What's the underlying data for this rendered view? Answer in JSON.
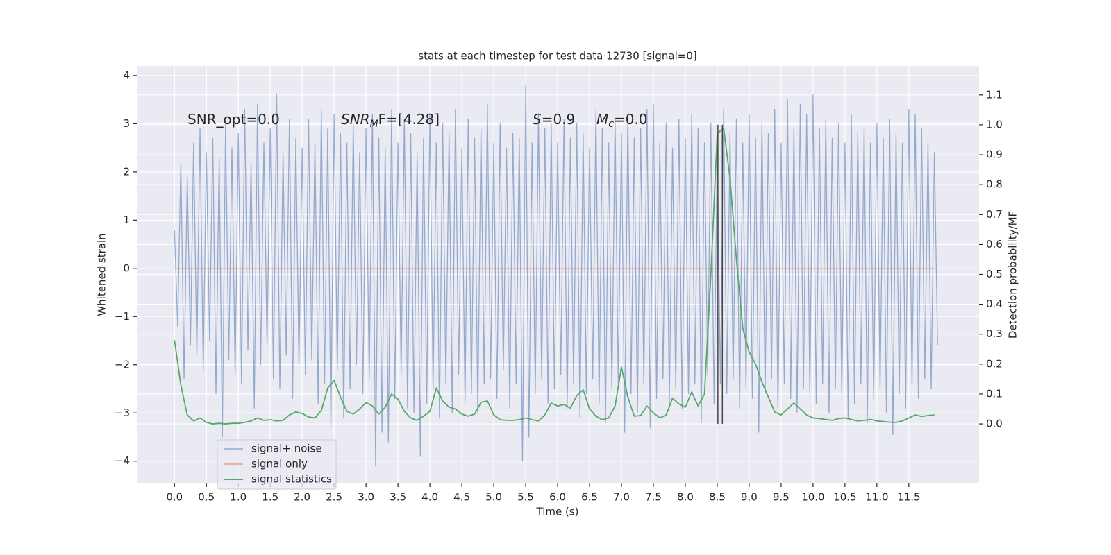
{
  "chart_data": {
    "type": "line",
    "title": "stats at each timestep for test data 12730 [signal=0]",
    "xlabel": "Time (s)",
    "ylabel": "Whitened strain",
    "y2label": "Detection probability/MF",
    "annotations": [
      {
        "text": "SNR_opt=0.0"
      },
      {
        "italic": "SNR",
        "sub": "M",
        "text": "F=[4.28]"
      },
      {
        "italic": "S",
        "text": "=0.9"
      },
      {
        "italic": "M",
        "sub": "c",
        "text": "=0.0"
      }
    ],
    "xlim": [
      -0.59,
      12.6
    ],
    "ylim": [
      -4.45,
      4.2
    ],
    "y2lim": [
      -0.197,
      1.197
    ],
    "xticks": [
      {
        "value": 0,
        "label": "0.0"
      },
      0.5,
      {
        "value": 1,
        "label": "1.0"
      },
      1.5,
      {
        "value": 2,
        "label": "2.0"
      },
      2.5,
      {
        "value": 3,
        "label": "3.0"
      },
      3.5,
      {
        "value": 4,
        "label": "4.0"
      },
      4.5,
      {
        "value": 5,
        "label": "5.0"
      },
      5.5,
      {
        "value": 6,
        "label": "6.0"
      },
      6.5,
      {
        "value": 7,
        "label": "7.0"
      },
      7.5,
      {
        "value": 8,
        "label": "8.0"
      },
      8.5,
      {
        "value": 9,
        "label": "9.0"
      },
      9.5,
      {
        "value": 10,
        "label": "10.0"
      },
      10.5,
      {
        "value": 11,
        "label": "11.0"
      },
      11.5
    ],
    "yticks": [
      {
        "value": -4,
        "label": "−4"
      },
      {
        "value": -3,
        "label": "−3"
      },
      {
        "value": -2,
        "label": "−2"
      },
      {
        "value": -1,
        "label": "−1"
      },
      0,
      1,
      2,
      3,
      4
    ],
    "y2ticks": [
      {
        "value": 0,
        "label": "0.0"
      },
      0.1,
      0.2,
      0.3,
      0.4,
      0.5,
      0.6,
      0.7,
      0.8,
      0.9,
      {
        "value": 1,
        "label": "1.0"
      },
      1.1
    ],
    "grid": true,
    "legend": "lower left",
    "vlines": [
      8.51,
      8.58
    ],
    "vline_color": "#444444",
    "x": [
      0,
      0.1,
      0.2,
      0.3,
      0.4,
      0.5,
      0.6,
      0.7,
      0.8,
      0.9,
      1,
      1.1,
      1.2,
      1.3,
      1.4,
      1.5,
      1.6,
      1.7,
      1.8,
      1.9,
      2,
      2.1,
      2.2,
      2.3,
      2.4,
      2.5,
      2.6,
      2.7,
      2.8,
      2.9,
      3,
      3.1,
      3.2,
      3.3,
      3.4,
      3.5,
      3.6,
      3.7,
      3.8,
      3.9,
      4,
      4.1,
      4.2,
      4.3,
      4.4,
      4.5,
      4.6,
      4.7,
      4.8,
      4.9,
      5,
      5.1,
      5.2,
      5.3,
      5.4,
      5.5,
      5.6,
      5.7,
      5.8,
      5.9,
      6,
      6.1,
      6.2,
      6.3,
      6.4,
      6.5,
      6.6,
      6.7,
      6.8,
      6.9,
      7,
      7.1,
      7.2,
      7.3,
      7.4,
      7.5,
      7.6,
      7.7,
      7.8,
      7.9,
      8,
      8.1,
      8.2,
      8.3,
      8.4,
      8.5,
      8.6,
      8.7,
      8.8,
      8.9,
      9,
      9.1,
      9.2,
      9.3,
      9.4,
      9.5,
      9.6,
      9.7,
      9.8,
      9.9,
      10,
      10.1,
      10.2,
      10.3,
      10.4,
      10.5,
      10.6,
      10.7,
      10.8,
      10.9,
      11,
      11.1,
      11.2,
      11.3,
      11.4,
      11.5,
      11.6,
      11.7,
      11.8,
      11.9
    ],
    "series": [
      {
        "name": "signal+ noise",
        "color": "#4c72b0",
        "x": [
          0,
          0.05,
          0.1,
          0.15,
          0.2,
          0.25,
          0.3,
          0.35,
          0.4,
          0.45,
          0.5,
          0.55,
          0.6,
          0.65,
          0.7,
          0.75,
          0.8,
          0.85,
          0.9,
          0.95,
          1,
          1.05,
          1.1,
          1.15,
          1.2,
          1.25,
          1.3,
          1.35,
          1.4,
          1.45,
          1.5,
          1.55,
          1.6,
          1.65,
          1.7,
          1.75,
          1.8,
          1.85,
          1.9,
          1.95,
          2,
          2.05,
          2.1,
          2.15,
          2.2,
          2.25,
          2.3,
          2.35,
          2.4,
          2.45,
          2.5,
          2.55,
          2.6,
          2.65,
          2.7,
          2.75,
          2.8,
          2.85,
          2.9,
          2.95,
          3,
          3.05,
          3.1,
          3.15,
          3.2,
          3.25,
          3.3,
          3.35,
          3.4,
          3.45,
          3.5,
          3.55,
          3.6,
          3.65,
          3.7,
          3.75,
          3.8,
          3.85,
          3.9,
          3.95,
          4,
          4.05,
          4.1,
          4.15,
          4.2,
          4.25,
          4.3,
          4.35,
          4.4,
          4.45,
          4.5,
          4.55,
          4.6,
          4.65,
          4.7,
          4.75,
          4.8,
          4.85,
          4.9,
          4.95,
          5,
          5.05,
          5.1,
          5.15,
          5.2,
          5.25,
          5.3,
          5.35,
          5.4,
          5.45,
          5.5,
          5.55,
          5.6,
          5.65,
          5.7,
          5.75,
          5.8,
          5.85,
          5.9,
          5.95,
          6,
          6.05,
          6.1,
          6.15,
          6.2,
          6.25,
          6.3,
          6.35,
          6.4,
          6.45,
          6.5,
          6.55,
          6.6,
          6.65,
          6.7,
          6.75,
          6.8,
          6.85,
          6.9,
          6.95,
          7,
          7.05,
          7.1,
          7.15,
          7.2,
          7.25,
          7.3,
          7.35,
          7.4,
          7.45,
          7.5,
          7.55,
          7.6,
          7.65,
          7.7,
          7.75,
          7.8,
          7.85,
          7.9,
          7.95,
          8,
          8.05,
          8.1,
          8.15,
          8.2,
          8.25,
          8.3,
          8.35,
          8.4,
          8.45,
          8.5,
          8.55,
          8.6,
          8.65,
          8.7,
          8.75,
          8.8,
          8.85,
          8.9,
          8.95,
          9,
          9.05,
          9.1,
          9.15,
          9.2,
          9.25,
          9.3,
          9.35,
          9.4,
          9.45,
          9.5,
          9.55,
          9.6,
          9.65,
          9.7,
          9.75,
          9.8,
          9.85,
          9.9,
          9.95,
          10,
          10.05,
          10.1,
          10.15,
          10.2,
          10.25,
          10.3,
          10.35,
          10.4,
          10.45,
          10.5,
          10.55,
          10.6,
          10.65,
          10.7,
          10.75,
          10.8,
          10.85,
          10.9,
          10.95,
          11,
          11.05,
          11.1,
          11.15,
          11.2,
          11.25,
          11.3,
          11.35,
          11.4,
          11.45,
          11.5,
          11.55,
          11.6,
          11.65,
          11.7,
          11.75,
          11.8,
          11.85,
          11.9,
          11.95
        ],
        "values": [
          0.8,
          -1.2,
          2.2,
          -2.3,
          1.9,
          -1.6,
          2.6,
          -1.8,
          2.9,
          -2.1,
          2.4,
          -1.5,
          2.7,
          -2.6,
          2.3,
          -3.5,
          3.0,
          -1.9,
          2.5,
          -2.2,
          2.8,
          -2.4,
          3.3,
          -1.7,
          2.2,
          -2.9,
          3.4,
          -2.0,
          2.6,
          -1.6,
          2.9,
          -2.3,
          3.6,
          -2.5,
          2.4,
          -1.8,
          3.1,
          -2.7,
          2.7,
          -2.0,
          2.5,
          -2.2,
          3.1,
          -1.9,
          2.6,
          -2.8,
          3.3,
          -2.4,
          2.9,
          -3.3,
          3.2,
          -2.1,
          2.8,
          -3.1,
          2.6,
          -2.5,
          3.0,
          -2.0,
          2.4,
          -2.6,
          2.9,
          -2.3,
          3.2,
          -4.1,
          2.7,
          -3.4,
          2.5,
          -3.6,
          3.3,
          -2.7,
          2.6,
          -2.2,
          3.1,
          -2.9,
          2.8,
          -3.0,
          2.4,
          -3.9,
          2.7,
          -2.8,
          3.2,
          -2.5,
          2.6,
          -3.1,
          3.0,
          -2.4,
          2.8,
          -3.0,
          3.3,
          -2.2,
          2.5,
          -2.8,
          3.1,
          -2.6,
          2.7,
          -3.0,
          2.9,
          -2.4,
          3.4,
          -2.3,
          2.6,
          -2.7,
          3.0,
          -2.1,
          2.5,
          -2.9,
          2.8,
          -2.4,
          2.7,
          -4.0,
          3.8,
          -3.5,
          2.6,
          -2.6,
          3.2,
          -2.3,
          2.9,
          -2.8,
          3.0,
          -2.5,
          2.6,
          -2.2,
          3.1,
          -2.9,
          2.7,
          -2.4,
          3.0,
          -3.1,
          2.8,
          -2.6,
          2.5,
          -2.3,
          3.3,
          -2.8,
          2.9,
          -3.2,
          2.6,
          -2.5,
          3.1,
          -2.4,
          2.8,
          -3.4,
          3.2,
          -2.6,
          2.7,
          -3.0,
          2.9,
          -2.4,
          3.3,
          -3.3,
          3.4,
          -2.7,
          2.6,
          -2.3,
          3.0,
          -2.8,
          2.5,
          -2.5,
          3.1,
          -2.9,
          2.7,
          -2.6,
          3.2,
          -2.4,
          2.9,
          -3.2,
          2.6,
          -2.2,
          3.0,
          -2.8,
          2.5,
          -2.4,
          3.3,
          -2.6,
          2.8,
          -2.3,
          3.1,
          -2.9,
          2.6,
          -2.5,
          3.2,
          -2.7,
          2.7,
          -3.4,
          3.0,
          -2.6,
          2.8,
          -2.3,
          3.3,
          -2.9,
          2.6,
          -2.4,
          3.5,
          -2.7,
          2.9,
          -3.0,
          3.4,
          -2.5,
          3.2,
          -2.6,
          3.6,
          -2.8,
          2.9,
          -2.4,
          3.1,
          -3.0,
          2.7,
          -2.5,
          3.0,
          -2.6,
          2.6,
          -3.1,
          3.2,
          -2.8,
          2.8,
          -2.4,
          2.9,
          -3.2,
          2.6,
          -2.7,
          3.0,
          -2.5,
          2.7,
          -3.0,
          3.1,
          -3.45,
          2.8,
          -2.6,
          2.6,
          -2.9,
          3.3,
          -2.4,
          3.2,
          -2.7,
          2.9,
          -2.3,
          2.6,
          -2.5,
          2.4,
          -1.6
        ]
      },
      {
        "name": "signal only",
        "color": "#dd8452",
        "values": [
          0,
          0,
          0,
          0,
          0,
          0,
          0,
          0,
          0,
          0,
          0,
          0,
          0,
          0,
          0,
          0,
          0,
          0,
          0,
          0,
          0,
          0,
          0,
          0,
          0,
          0,
          0,
          0,
          0,
          0,
          0,
          0,
          0,
          0,
          0,
          0,
          0,
          0,
          0,
          0,
          0,
          0,
          0,
          0,
          0,
          0,
          0,
          0,
          0,
          0,
          0,
          0,
          0,
          0,
          0,
          0,
          0,
          0,
          0,
          0,
          0,
          0,
          0,
          0,
          0,
          0,
          0,
          0,
          0,
          0,
          0,
          0,
          0,
          0,
          0,
          0,
          0,
          0,
          0,
          0,
          0,
          0,
          0,
          0,
          0,
          0,
          0,
          0,
          0,
          0,
          0,
          0,
          0,
          0,
          0,
          0,
          0,
          0,
          0,
          0,
          0,
          0,
          0,
          0,
          0,
          0,
          0,
          0,
          0,
          0,
          0,
          0,
          0,
          0,
          0,
          0,
          0,
          0,
          0,
          0
        ]
      },
      {
        "name": "signal statistics",
        "color": "#55a868",
        "axis": "y2",
        "values": [
          0.28,
          0.13,
          0.03,
          0.01,
          0.02,
          0.005,
          0,
          0.002,
          0,
          0.002,
          0.002,
          0.005,
          0.01,
          0.02,
          0.012,
          0.014,
          0.01,
          0.012,
          0.03,
          0.04,
          0.035,
          0.023,
          0.02,
          0.045,
          0.12,
          0.145,
          0.09,
          0.042,
          0.033,
          0.05,
          0.072,
          0.06,
          0.033,
          0.056,
          0.1,
          0.083,
          0.042,
          0.02,
          0.012,
          0.026,
          0.042,
          0.12,
          0.077,
          0.056,
          0.05,
          0.033,
          0.026,
          0.033,
          0.072,
          0.077,
          0.03,
          0.014,
          0.012,
          0.012,
          0.014,
          0.02,
          0.014,
          0.01,
          0.03,
          0.07,
          0.06,
          0.065,
          0.053,
          0.095,
          0.114,
          0.05,
          0.026,
          0.014,
          0.02,
          0.06,
          0.19,
          0.09,
          0.026,
          0.028,
          0.06,
          0.037,
          0.02,
          0.03,
          0.086,
          0.067,
          0.056,
          0.107,
          0.06,
          0.1,
          0.5,
          0.97,
          0.99,
          0.82,
          0.55,
          0.32,
          0.24,
          0.2,
          0.14,
          0.09,
          0.04,
          0.03,
          0.05,
          0.07,
          0.05,
          0.03,
          0.02,
          0.018,
          0.015,
          0.012,
          0.018,
          0.02,
          0.015,
          0.01,
          0.012,
          0.015,
          0.01,
          0.008,
          0.006,
          0.005,
          0.01,
          0.02,
          0.03,
          0.025,
          0.028,
          0.03
        ]
      }
    ]
  }
}
